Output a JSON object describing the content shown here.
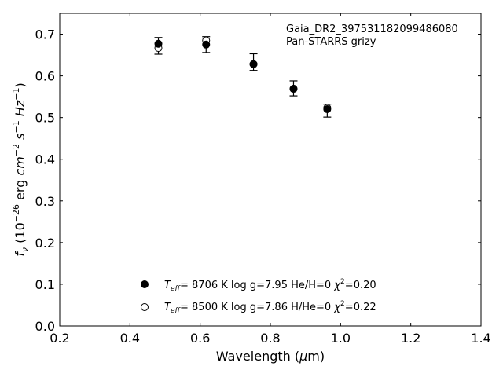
{
  "chart_data": {
    "type": "scatter",
    "xlabel_main": "Wavelength (",
    "xlabel_mu": "μ",
    "xlabel_end": "m)",
    "xlim": [
      0.2,
      1.4
    ],
    "ylim": [
      0.0,
      0.75
    ],
    "xticks": [
      "0.2",
      "0.4",
      "0.6",
      "0.8",
      "1.0",
      "1.2",
      "1.4"
    ],
    "xtick_values": [
      0.2,
      0.4,
      0.6,
      0.8,
      1.0,
      1.2,
      1.4
    ],
    "yticks": [
      "0.0",
      "0.1",
      "0.2",
      "0.3",
      "0.4",
      "0.5",
      "0.6",
      "0.7"
    ],
    "ytick_values": [
      0.0,
      0.1,
      0.2,
      0.3,
      0.4,
      0.5,
      0.6,
      0.7
    ],
    "annotation_lines": [
      "Gaia_DR2_3975311820994860​80",
      "Pan-STARRS grizy"
    ],
    "observed": {
      "x": [
        0.481,
        0.617,
        0.752,
        0.866,
        0.962
      ],
      "y": [
        0.672,
        0.675,
        0.633,
        0.57,
        0.518
      ],
      "yerr_low": [
        0.02,
        0.019,
        0.02,
        0.018,
        0.017
      ],
      "yerr_high": [
        0.02,
        0.019,
        0.02,
        0.018,
        0.014
      ]
    },
    "series": [
      {
        "x": [
          0.481,
          0.617,
          0.752,
          0.866,
          0.962
        ],
        "y": [
          0.677,
          0.675,
          0.628,
          0.569,
          0.52
        ],
        "marker": "filled-circle",
        "legend_label": "T_eff=  8706 K  log g=7.95  He/H=0  χ²=0.20"
      },
      {
        "x": [
          0.481,
          0.617,
          0.752,
          0.866,
          0.962
        ],
        "y": [
          0.667,
          0.685,
          0.628,
          0.569,
          0.523
        ],
        "marker": "open-circle",
        "legend_label": "T_eff=  8500 K  log g=7.86  H/He=0  χ²=0.22"
      }
    ],
    "legend": [
      {
        "teff": "8706",
        "logg": "7.95",
        "comp_label": "He/H=0",
        "chi2": "0.20",
        "marker": "filled"
      },
      {
        "teff": "8500",
        "logg": "7.86",
        "comp_label": "H/He=0",
        "chi2": "0.22",
        "marker": "open"
      }
    ],
    "legend_position": "lower-center",
    "grid": false
  }
}
